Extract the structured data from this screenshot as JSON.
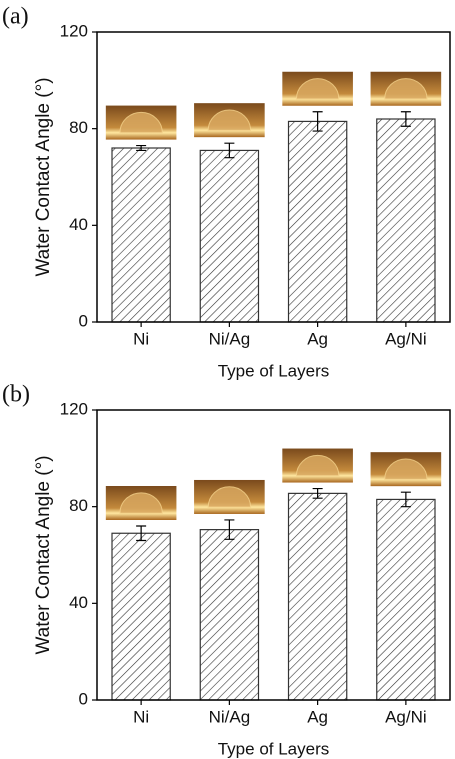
{
  "chart_data": [
    {
      "type": "bar",
      "panel_label": "(a)",
      "x_label": "Type of Layers",
      "y_label": "Water Contact Angle (°)",
      "categories": [
        "Ni",
        "Ni/Ag",
        "Ag",
        "Ag/Ni"
      ],
      "values": [
        72,
        71,
        83,
        84
      ],
      "errors": [
        1,
        3,
        4,
        3
      ],
      "color": "#333333",
      "hatch": true,
      "ylim": [
        0,
        120
      ],
      "yticks": [
        0,
        40,
        80,
        120
      ]
    },
    {
      "type": "bar",
      "panel_label": "(b)",
      "x_label": "Type of Layers",
      "y_label": "Water Contact Angle (°)",
      "categories": [
        "Ni",
        "Ni/Ag",
        "Ag",
        "Ag/Ni"
      ],
      "values": [
        69,
        70.5,
        85.5,
        83
      ],
      "errors": [
        3,
        4,
        2,
        3
      ],
      "color": "#333333",
      "hatch": true,
      "ylim": [
        0,
        120
      ],
      "yticks": [
        0,
        40,
        80,
        120
      ]
    }
  ]
}
